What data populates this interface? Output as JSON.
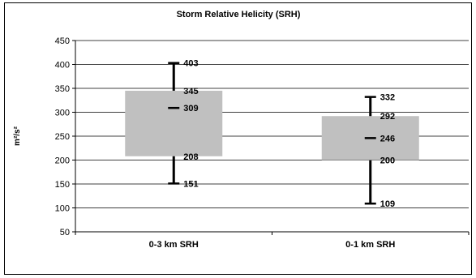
{
  "chart_data": {
    "type": "box",
    "title": "Storm Relative Helicity (SRH)",
    "ylabel": "m²/s²",
    "ylim": [
      50,
      450
    ],
    "yticks": [
      50,
      100,
      150,
      200,
      250,
      300,
      350,
      400,
      450
    ],
    "grid": true,
    "categories": [
      "0-3 km SRH",
      "0-1 km SRH"
    ],
    "boxes": [
      {
        "category": "0-3 km SRH",
        "min": 151,
        "q1": 208,
        "median": 309,
        "q3": 345,
        "max": 403
      },
      {
        "category": "0-1 km SRH",
        "min": 109,
        "q1": 200,
        "median": 246,
        "q3": 292,
        "max": 332
      }
    ],
    "box_color": "#c0c0c0"
  }
}
